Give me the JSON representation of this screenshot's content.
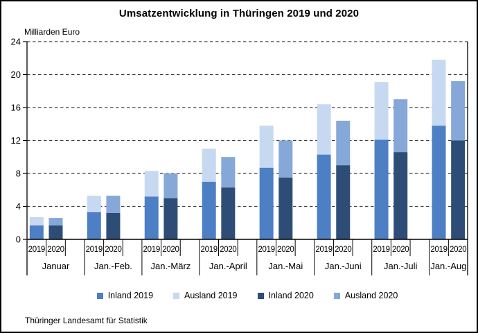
{
  "title": "Umsatzentwicklung in Thüringen 2019 und 2020",
  "y_axis_unit_label": "Milliarden Euro",
  "source": "Thüringer Landesamt für Statistik",
  "colors": {
    "inland_2019": "#4c7fc4",
    "ausland_2019": "#c6d9f0",
    "inland_2020": "#2e4d76",
    "ausland_2020": "#85a8d8",
    "gridline": "#3d3d3d",
    "axis": "#000000"
  },
  "legend": {
    "items": [
      {
        "label": "Inland 2019",
        "color": "#4c7fc4"
      },
      {
        "label": "Ausland 2019",
        "color": "#c6d9f0"
      },
      {
        "label": "Inland 2020",
        "color": "#2e4d76"
      },
      {
        "label": "Ausland 2020",
        "color": "#85a8d8"
      }
    ]
  },
  "chart_data": {
    "type": "bar",
    "stacked": true,
    "title": "Umsatzentwicklung in Thüringen 2019 und 2020",
    "ylabel": "Milliarden Euro",
    "ylim": [
      0,
      24
    ],
    "y_ticks": [
      0,
      4,
      8,
      12,
      16,
      20,
      24
    ],
    "grid": "dashed-horizontal",
    "legend_position": "bottom",
    "categories": [
      "Januar",
      "Jan.-Feb.",
      "Jan.-März",
      "Jan.-April",
      "Jan.-Mai",
      "Jan.-Juni",
      "Jan.-Juli",
      "Jan.-Aug"
    ],
    "bar_years": [
      "2019",
      "2020"
    ],
    "series": [
      {
        "name": "Inland 2019",
        "year": "2019",
        "stack_order": 0,
        "color": "#4c7fc4",
        "values": [
          1.7,
          3.3,
          5.2,
          7.0,
          8.7,
          10.3,
          12.1,
          13.8
        ]
      },
      {
        "name": "Ausland 2019",
        "year": "2019",
        "stack_order": 1,
        "color": "#c6d9f0",
        "values": [
          1.0,
          2.0,
          3.1,
          4.0,
          5.1,
          6.1,
          7.0,
          8.0
        ]
      },
      {
        "name": "Inland 2020",
        "year": "2020",
        "stack_order": 0,
        "color": "#2e4d76",
        "values": [
          1.7,
          3.2,
          5.0,
          6.3,
          7.5,
          9.0,
          10.6,
          12.0
        ]
      },
      {
        "name": "Ausland 2020",
        "year": "2020",
        "stack_order": 1,
        "color": "#85a8d8",
        "values": [
          0.9,
          2.1,
          3.0,
          3.7,
          4.5,
          5.4,
          6.4,
          7.2
        ]
      }
    ],
    "totals_2019": [
      2.7,
      5.3,
      8.3,
      11.0,
      13.8,
      16.4,
      19.1,
      21.8
    ],
    "totals_2020": [
      2.6,
      5.3,
      8.0,
      10.0,
      12.0,
      14.4,
      17.0,
      19.2
    ]
  }
}
